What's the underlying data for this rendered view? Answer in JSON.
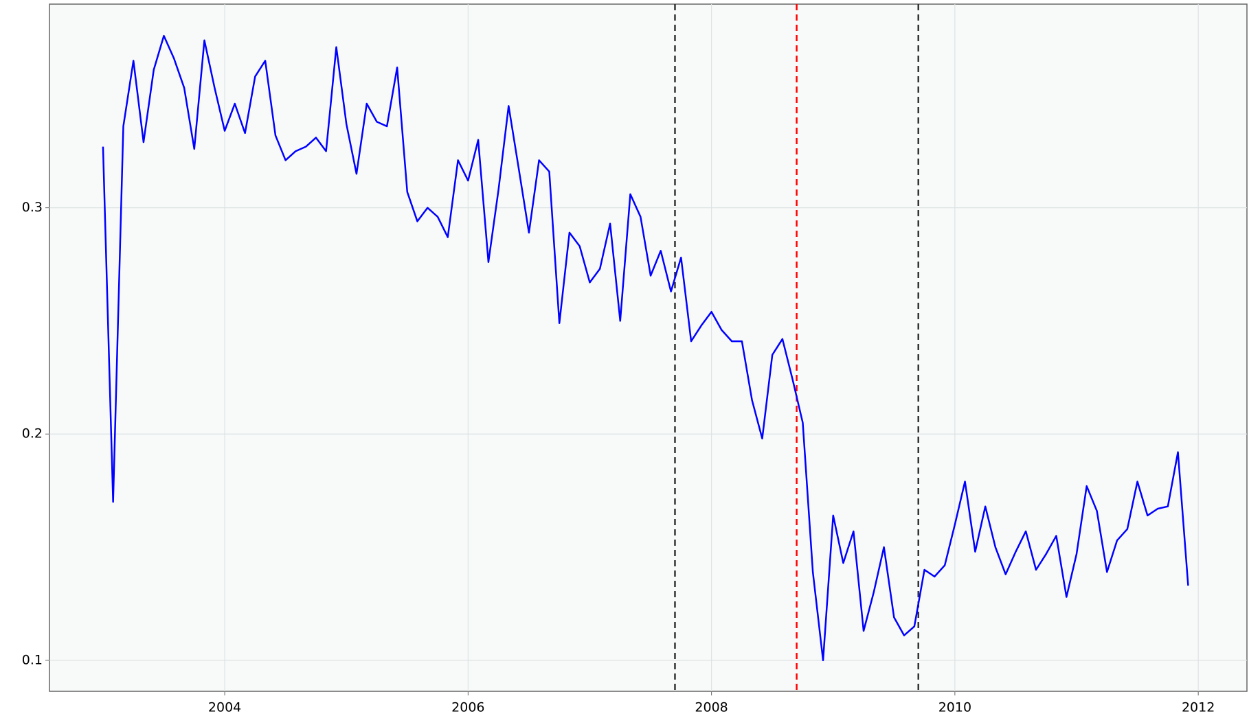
{
  "chart_data": {
    "type": "line",
    "x": [
      2003,
      2003.083,
      2003.167,
      2003.25,
      2003.333,
      2003.417,
      2003.5,
      2003.583,
      2003.667,
      2003.75,
      2003.833,
      2003.917,
      2004,
      2004.083,
      2004.167,
      2004.25,
      2004.333,
      2004.417,
      2004.5,
      2004.583,
      2004.667,
      2004.75,
      2004.833,
      2004.917,
      2005,
      2005.083,
      2005.167,
      2005.25,
      2005.333,
      2005.417,
      2005.5,
      2005.583,
      2005.667,
      2005.75,
      2005.833,
      2005.917,
      2006,
      2006.083,
      2006.167,
      2006.25,
      2006.333,
      2006.417,
      2006.5,
      2006.583,
      2006.667,
      2006.75,
      2006.833,
      2006.917,
      2007,
      2007.083,
      2007.167,
      2007.25,
      2007.333,
      2007.417,
      2007.5,
      2007.583,
      2007.667,
      2007.75,
      2007.833,
      2007.917,
      2008,
      2008.083,
      2008.167,
      2008.25,
      2008.333,
      2008.417,
      2008.5,
      2008.583,
      2008.667,
      2008.75,
      2008.833,
      2008.917,
      2009,
      2009.083,
      2009.167,
      2009.25,
      2009.333,
      2009.417,
      2009.5,
      2009.583,
      2009.667,
      2009.75,
      2009.833,
      2009.917,
      2010,
      2010.083,
      2010.167,
      2010.25,
      2010.333,
      2010.417,
      2010.5,
      2010.583,
      2010.667,
      2010.75,
      2010.833,
      2010.917,
      2011,
      2011.083,
      2011.167,
      2011.25,
      2011.333,
      2011.417,
      2011.5,
      2011.583,
      2011.667,
      2011.75,
      2011.833,
      2011.917
    ],
    "series": [
      {
        "color": "#0000ff",
        "values": [
          0.327,
          0.17,
          0.336,
          0.365,
          0.329,
          0.361,
          0.376,
          0.366,
          0.353,
          0.326,
          0.374,
          0.353,
          0.334,
          0.346,
          0.333,
          0.358,
          0.365,
          0.332,
          0.321,
          0.325,
          0.327,
          0.331,
          0.325,
          0.371,
          0.337,
          0.315,
          0.346,
          0.338,
          0.336,
          0.362,
          0.307,
          0.294,
          0.3,
          0.296,
          0.287,
          0.321,
          0.312,
          0.33,
          0.276,
          0.308,
          0.345,
          0.317,
          0.289,
          0.321,
          0.316,
          0.249,
          0.289,
          0.283,
          0.267,
          0.273,
          0.293,
          0.25,
          0.306,
          0.296,
          0.27,
          0.281,
          0.263,
          0.278,
          0.241,
          0.248,
          0.254,
          0.246,
          0.241,
          0.241,
          0.215,
          0.198,
          0.235,
          0.242,
          0.224,
          0.205,
          0.139,
          0.1,
          0.164,
          0.143,
          0.157,
          0.113,
          0.13,
          0.15,
          0.119,
          0.111,
          0.115,
          0.14,
          0.137,
          0.142,
          0.16,
          0.179,
          0.148,
          0.168,
          0.15,
          0.138,
          0.148,
          0.157,
          0.14,
          0.147,
          0.155,
          0.128,
          0.147,
          0.177,
          0.166,
          0.139,
          0.153,
          0.158,
          0.179,
          0.164,
          0.167,
          0.168,
          0.192,
          0.133
        ]
      }
    ],
    "xlim": [
      2002.56,
      2012.4
    ],
    "xticks": [
      2004,
      2006,
      2008,
      2010,
      2012
    ],
    "ylim": [
      0.0863,
      0.39
    ],
    "yticks": [
      0.1,
      0.2,
      0.3
    ],
    "vlines": [
      {
        "value": 2007.7,
        "color": "#333333"
      },
      {
        "value": 2008.7,
        "color": "#ff0000"
      },
      {
        "value": 2009.7,
        "color": "#333333"
      }
    ],
    "grid": true
  }
}
